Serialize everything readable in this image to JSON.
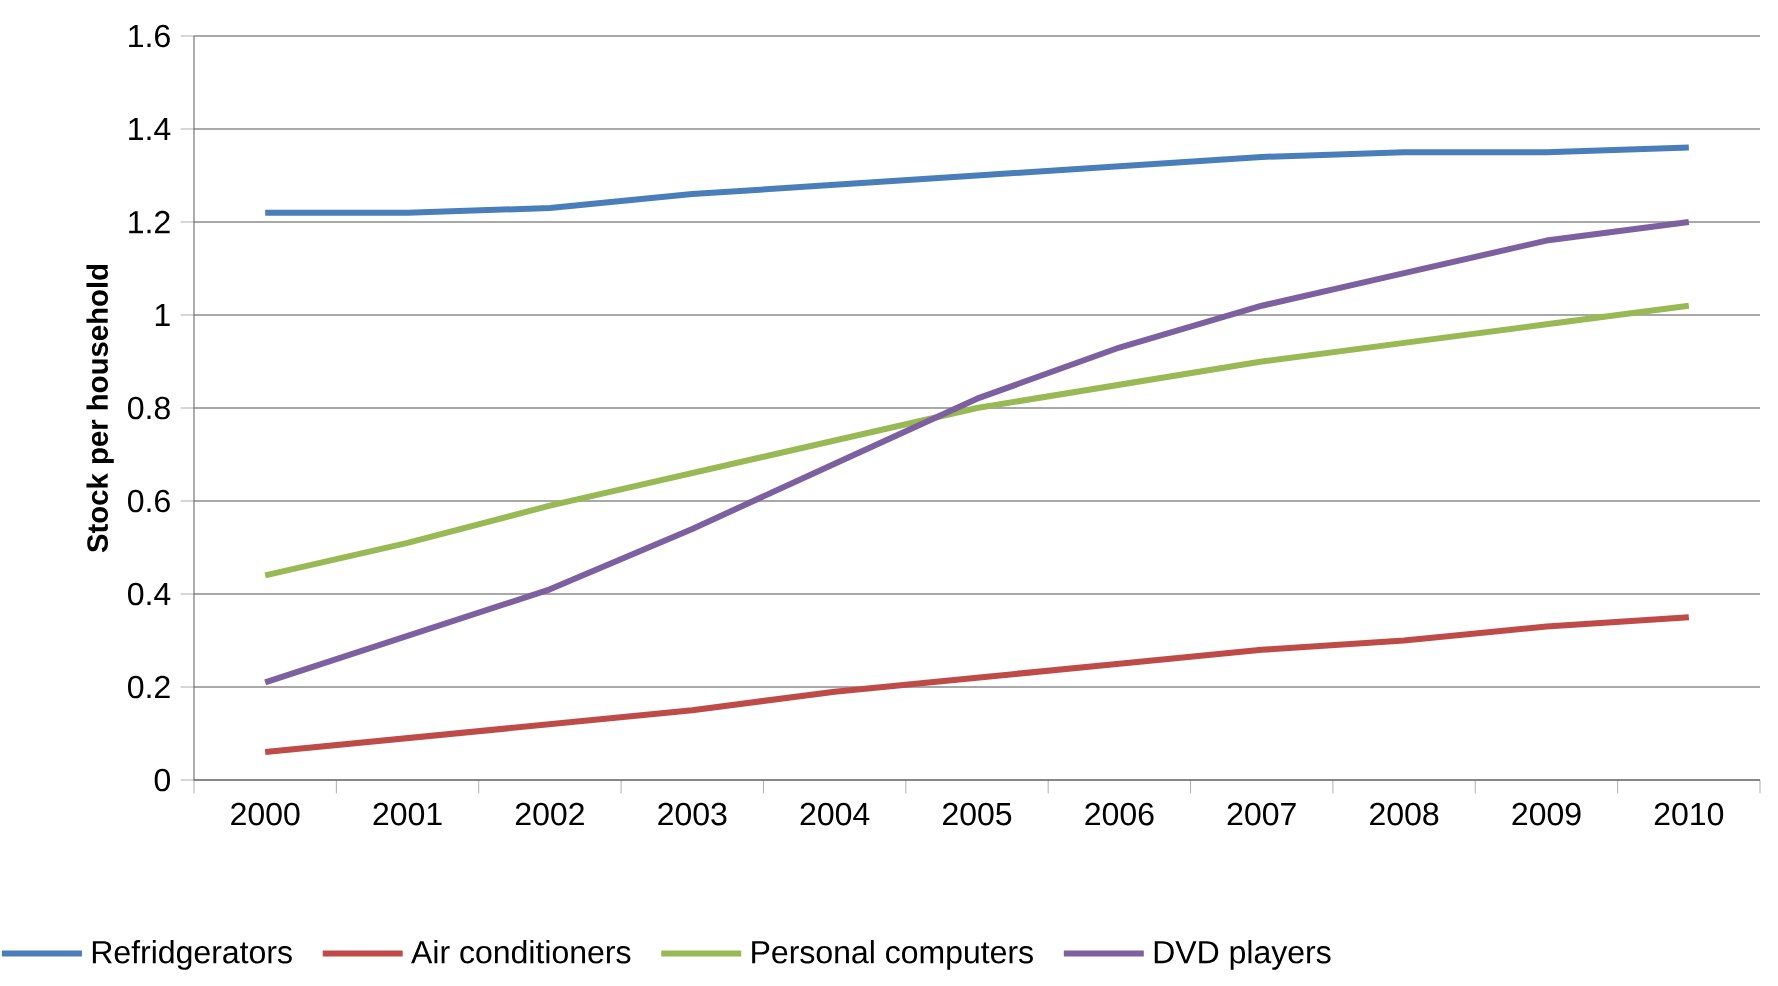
{
  "chart_data": {
    "type": "line",
    "ylabel": "Stock per household",
    "categories": [
      "2000",
      "2001",
      "2002",
      "2003",
      "2004",
      "2005",
      "2006",
      "2007",
      "2008",
      "2009",
      "2010"
    ],
    "ylim": [
      0,
      1.6
    ],
    "yticks": [
      0,
      0.2,
      0.4,
      0.6,
      0.8,
      1,
      1.2,
      1.4,
      1.6
    ],
    "grid": "y",
    "legend": "bottom",
    "marker": "none",
    "line_style": "solid",
    "series": [
      {
        "name": "Refridgerators",
        "color": "#4a7ebb",
        "values": [
          1.22,
          1.22,
          1.23,
          1.26,
          1.28,
          1.3,
          1.32,
          1.34,
          1.35,
          1.35,
          1.36
        ]
      },
      {
        "name": "Air conditioners",
        "color": "#be4b48",
        "values": [
          0.06,
          0.09,
          0.12,
          0.15,
          0.19,
          0.22,
          0.25,
          0.28,
          0.3,
          0.33,
          0.35
        ]
      },
      {
        "name": "Personal computers",
        "color": "#98b954",
        "values": [
          0.44,
          0.51,
          0.59,
          0.66,
          0.73,
          0.8,
          0.85,
          0.9,
          0.94,
          0.98,
          1.02
        ]
      },
      {
        "name": "DVD players",
        "color": "#7d60a0",
        "values": [
          0.21,
          0.31,
          0.41,
          0.54,
          0.68,
          0.82,
          0.93,
          1.02,
          1.09,
          1.16,
          1.2
        ]
      }
    ]
  }
}
